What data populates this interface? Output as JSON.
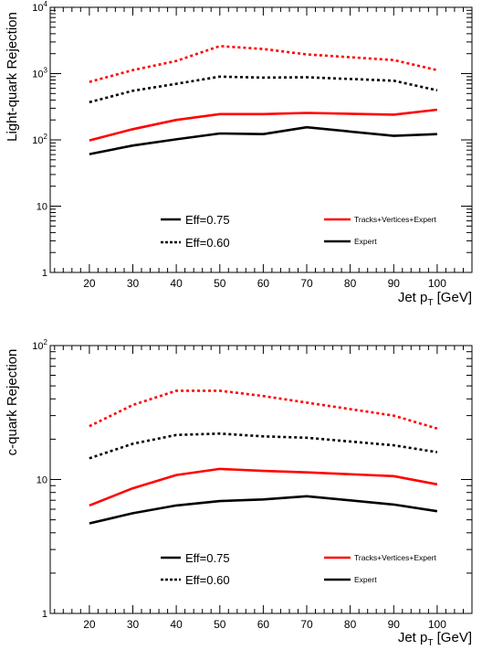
{
  "chart_data": [
    {
      "type": "line",
      "ylabel": "Light-quark Rejection",
      "xlabel": "Jet p_T [GeV]",
      "xlabel_main": "Jet p",
      "xlabel_sub": "T",
      "xlabel_unit": " [GeV]",
      "yscale": "log",
      "xlim": [
        11,
        108
      ],
      "ylim": [
        1,
        10000
      ],
      "x_ticks": [
        20,
        30,
        40,
        50,
        60,
        70,
        80,
        90,
        100
      ],
      "y_ticks": [
        {
          "value": 1,
          "base": "1",
          "exp": ""
        },
        {
          "value": 10,
          "base": "10",
          "exp": ""
        },
        {
          "value": 100,
          "base": "10",
          "exp": "2"
        },
        {
          "value": 1000,
          "base": "10",
          "exp": "3"
        },
        {
          "value": 10000,
          "base": "10",
          "exp": "4"
        }
      ],
      "x": [
        20,
        30,
        40,
        50,
        60,
        70,
        90,
        100
      ],
      "series": [
        {
          "style": "red-dashed",
          "color": "#ff0000",
          "dashed": true,
          "values": [
            750,
            1130,
            1550,
            2600,
            2350,
            1950,
            1600,
            1130
          ]
        },
        {
          "style": "black-dashed",
          "color": "#000000",
          "dashed": true,
          "values": [
            370,
            550,
            700,
            900,
            870,
            880,
            780,
            560
          ]
        },
        {
          "style": "red-solid",
          "color": "#ff0000",
          "dashed": false,
          "values": [
            98,
            145,
            200,
            245,
            245,
            255,
            240,
            285
          ]
        },
        {
          "style": "black-solid",
          "color": "#000000",
          "dashed": false,
          "values": [
            61,
            82,
            102,
            125,
            122,
            155,
            115,
            122
          ]
        }
      ],
      "legend": {
        "placement": "bottom",
        "efficiency": [
          {
            "label": "Eff=0.75",
            "dashed": false
          },
          {
            "label": "Eff=0.60",
            "dashed": true
          }
        ],
        "taggers": [
          {
            "label": "Tracks+Vertices+Expert",
            "color": "#ff0000"
          },
          {
            "label": "Expert",
            "color": "#000000"
          }
        ]
      }
    },
    {
      "type": "line",
      "ylabel": "c-quark Rejection",
      "xlabel": "Jet p_T [GeV]",
      "xlabel_main": "Jet p",
      "xlabel_sub": "T",
      "xlabel_unit": " [GeV]",
      "yscale": "log",
      "xlim": [
        11,
        108
      ],
      "ylim": [
        1,
        100
      ],
      "x_ticks": [
        20,
        30,
        40,
        50,
        60,
        70,
        80,
        90,
        100
      ],
      "y_ticks": [
        {
          "value": 1,
          "base": "1",
          "exp": ""
        },
        {
          "value": 10,
          "base": "10",
          "exp": ""
        },
        {
          "value": 100,
          "base": "10",
          "exp": "2"
        }
      ],
      "x": [
        20,
        30,
        40,
        50,
        60,
        70,
        90,
        100
      ],
      "series": [
        {
          "style": "red-dashed",
          "color": "#ff0000",
          "dashed": true,
          "values": [
            25,
            36,
            46,
            46,
            42,
            37.5,
            30,
            24
          ]
        },
        {
          "style": "black-dashed",
          "color": "#000000",
          "dashed": true,
          "values": [
            14.4,
            18.5,
            21.5,
            22,
            21,
            20.5,
            18,
            16
          ]
        },
        {
          "style": "red-solid",
          "color": "#ff0000",
          "dashed": false,
          "values": [
            6.4,
            8.6,
            10.8,
            12,
            11.6,
            11.3,
            10.6,
            9.2
          ]
        },
        {
          "style": "black-solid",
          "color": "#000000",
          "dashed": false,
          "values": [
            4.7,
            5.6,
            6.4,
            6.9,
            7.1,
            7.5,
            6.5,
            5.8
          ]
        }
      ],
      "legend": {
        "placement": "bottom",
        "efficiency": [
          {
            "label": "Eff=0.75",
            "dashed": false
          },
          {
            "label": "Eff=0.60",
            "dashed": true
          }
        ],
        "taggers": [
          {
            "label": "Tracks+Vertices+Expert",
            "color": "#ff0000"
          },
          {
            "label": "Expert",
            "color": "#000000"
          }
        ]
      }
    }
  ]
}
